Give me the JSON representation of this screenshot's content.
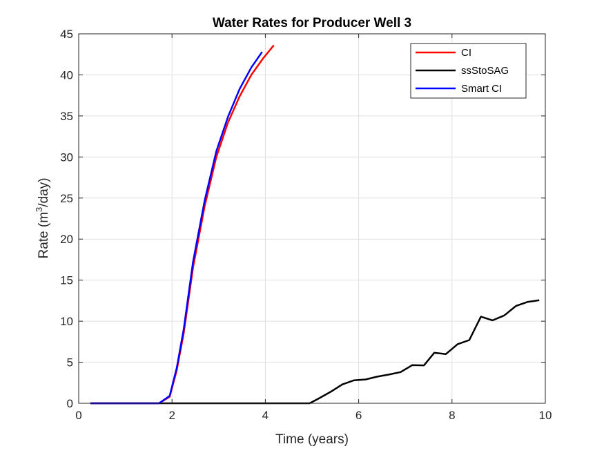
{
  "chart_data": {
    "type": "line",
    "title": "Water Rates for Producer Well 3",
    "xlabel": "Time (years)",
    "ylabel_prefix": "Rate (m",
    "ylabel_sup": "3",
    "ylabel_suffix": "/day)",
    "xlim": [
      0,
      10
    ],
    "ylim": [
      0,
      45
    ],
    "xticks": [
      0,
      2,
      4,
      6,
      8,
      10
    ],
    "yticks": [
      0,
      5,
      10,
      15,
      20,
      25,
      30,
      35,
      40,
      45
    ],
    "grid": true,
    "legend_location": "top-right",
    "series": [
      {
        "name": "CI",
        "color": "#ff0000",
        "x": [
          0.25,
          1.0,
          1.72,
          1.95,
          2.1,
          2.25,
          2.45,
          2.7,
          2.95,
          3.2,
          3.45,
          3.7,
          3.95,
          4.18
        ],
        "y": [
          0,
          0,
          0,
          0.8,
          4.0,
          8.5,
          16.5,
          24.0,
          30.0,
          34.2,
          37.4,
          40.0,
          42.0,
          43.6
        ]
      },
      {
        "name": "ssStoSAG",
        "color": "#000000",
        "x": [
          0.25,
          1.0,
          2.0,
          3.0,
          4.0,
          4.7,
          4.95,
          5.15,
          5.4,
          5.65,
          5.9,
          6.15,
          6.4,
          6.65,
          6.9,
          7.15,
          7.4,
          7.62,
          7.87,
          8.12,
          8.37,
          8.62,
          8.87,
          9.12,
          9.37,
          9.62,
          9.87
        ],
        "y": [
          0,
          0,
          0,
          0,
          0,
          0,
          0,
          0.6,
          1.4,
          2.3,
          2.8,
          2.9,
          3.25,
          3.5,
          3.8,
          4.65,
          4.62,
          6.15,
          6.0,
          7.2,
          7.7,
          10.55,
          10.1,
          10.7,
          11.85,
          12.35,
          12.55
        ]
      },
      {
        "name": "Smart CI",
        "color": "#0000ff",
        "x": [
          0.25,
          1.0,
          1.72,
          1.95,
          2.1,
          2.25,
          2.45,
          2.7,
          2.95,
          3.2,
          3.45,
          3.7,
          3.93
        ],
        "y": [
          0,
          0,
          0,
          0.9,
          4.3,
          9.0,
          17.2,
          24.7,
          30.7,
          34.9,
          38.3,
          40.9,
          42.8
        ]
      }
    ]
  }
}
